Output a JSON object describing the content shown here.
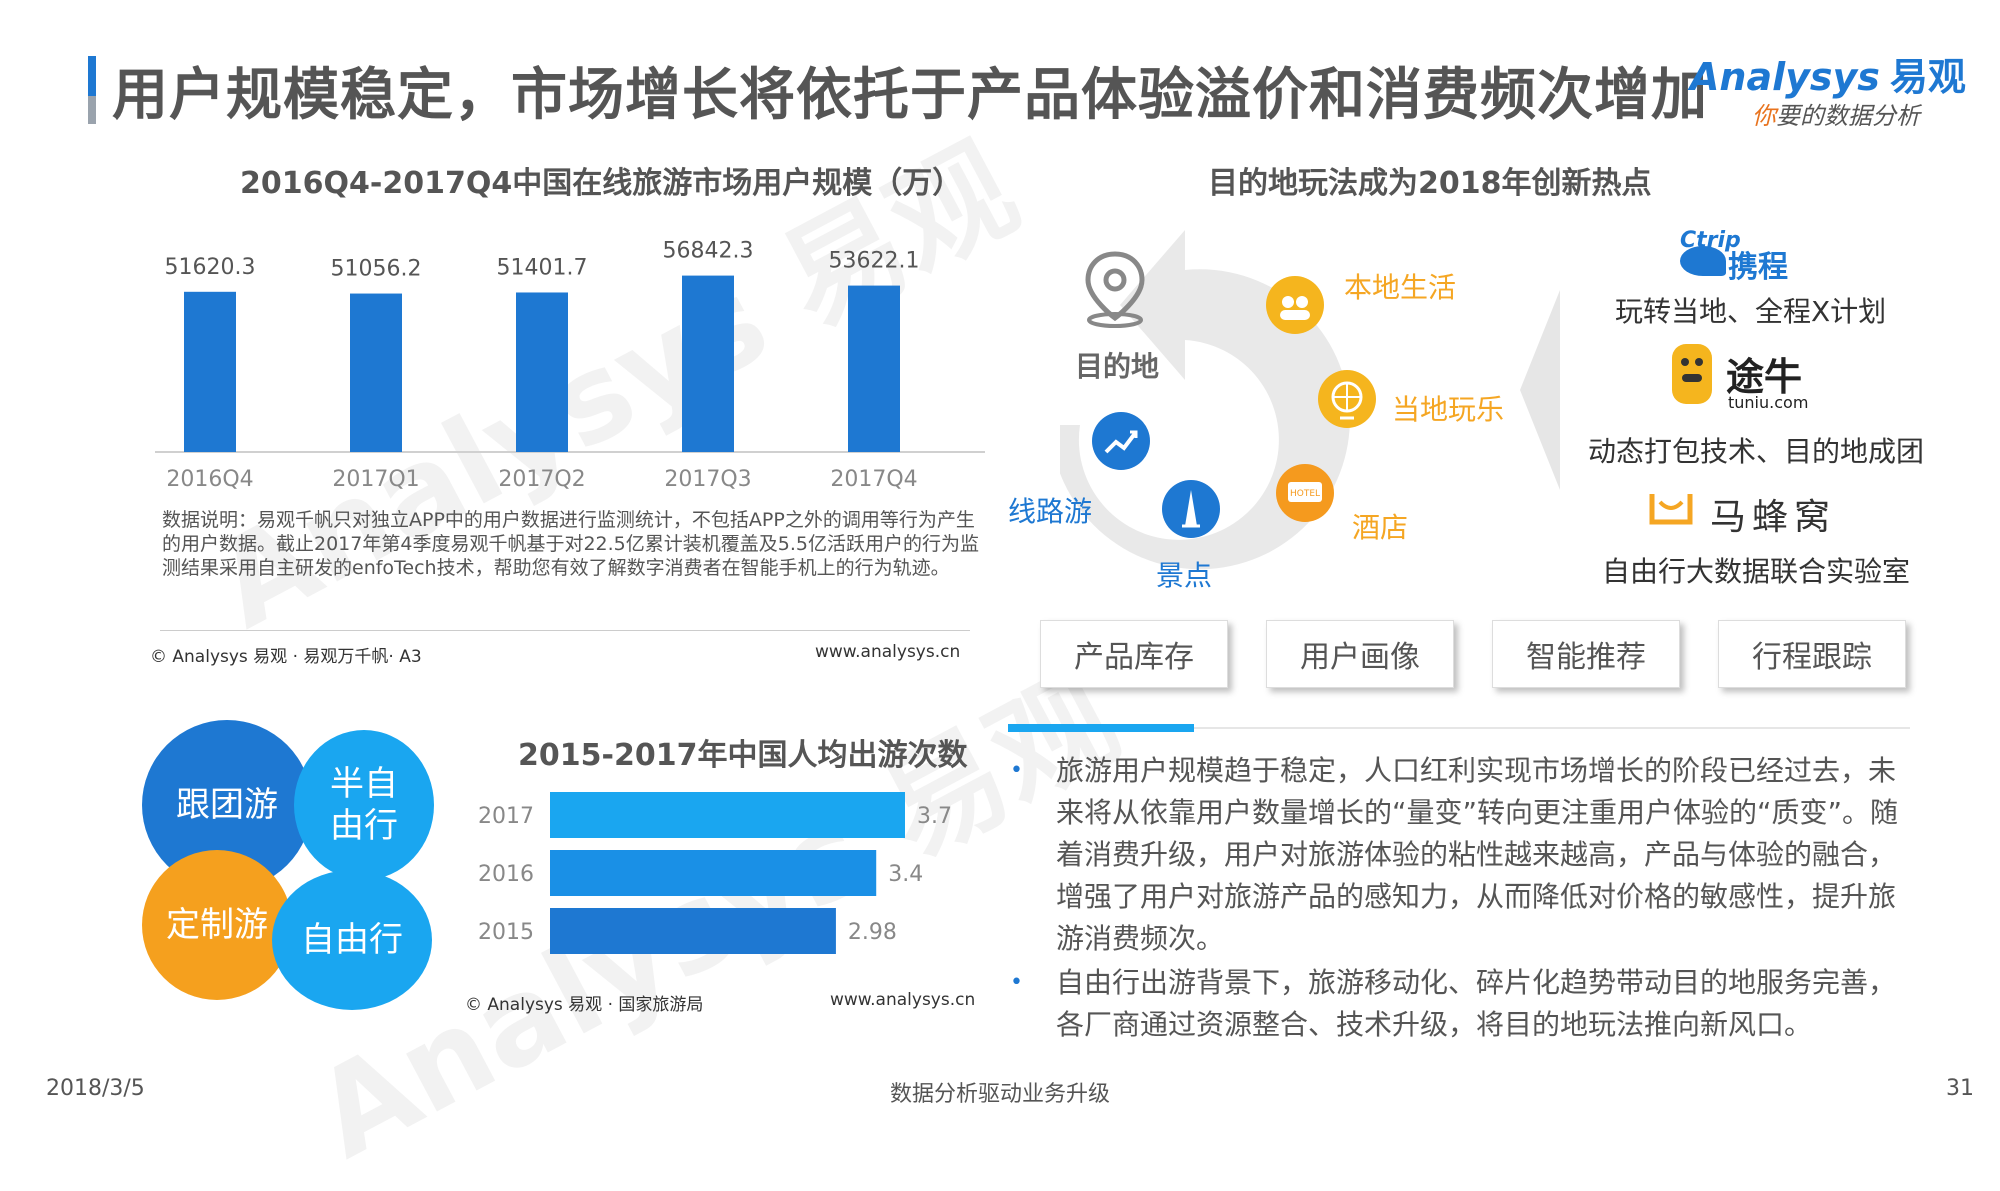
{
  "header": {
    "title": "用户规模稳定，市场增长将依托于产品体验溢价和消费频次增加",
    "logo_en": "Analysys",
    "logo_cn": "易观",
    "logo_tag_a": "你",
    "logo_tag_b": "要的数据分析"
  },
  "bar_chart": {
    "title": "2016Q4-2017Q4中国在线旅游市场用户规模（万）",
    "note": "数据说明：易观千帆只对独立APP中的用户数据进行监测统计，不包括APP之外的调用等行为产生的用户数据。截止2017年第4季度易观千帆基于对22.5亿累计装机覆盖及5.5亿活跃用户的行为监测结果采用自主研发的enfoTech技术，帮助您有效了解数字消费者在智能手机上的行为轨迹。",
    "source": "© Analysys 易观 · 易观万千帆· A3",
    "url": "www.analysys.cn"
  },
  "hbar_chart": {
    "title": "2015-2017年中国人均出游次数",
    "source": "© Analysys 易观 · 国家旅游局",
    "url": "www.analysys.cn"
  },
  "chart_data": [
    {
      "type": "bar",
      "title": "2016Q4-2017Q4中国在线旅游市场用户规模（万）",
      "categories": [
        "2016Q4",
        "2017Q1",
        "2017Q2",
        "2017Q3",
        "2017Q4"
      ],
      "values": [
        51620.3,
        51056.2,
        51401.7,
        56842.3,
        53622.1
      ],
      "value_labels": [
        "51620.3",
        "51056.2",
        "51401.7",
        "56842.3",
        "53622.1"
      ],
      "color": "#1e78d2"
    },
    {
      "type": "bar",
      "orientation": "horizontal",
      "title": "2015-2017年中国人均出游次数",
      "categories": [
        "2017",
        "2016",
        "2015"
      ],
      "values": [
        3.7,
        3.4,
        2.98
      ],
      "value_labels": [
        "3.7",
        "3.4",
        "2.98"
      ],
      "colors": [
        "#1aa6f0",
        "#1a90e6",
        "#1e78d2"
      ]
    }
  ],
  "venn": {
    "tuan": "跟团游",
    "banzizhu": "半自由行",
    "dingzhi": "定制游",
    "ziyou": "自由行",
    "colors": {
      "blue_dark": "#1e78d2",
      "blue_light": "#1aa6f0",
      "orange": "#f5a01e"
    }
  },
  "innovation": {
    "title": "目的地玩法成为2018年创新热点",
    "destination": "目的地",
    "local_life": "本地生活",
    "local_fun": "当地玩乐",
    "hotel": "酒店",
    "scenic": "景点",
    "route": "线路游",
    "hotel_sign": "HOTEL",
    "brands": {
      "ctrip_en": "Ctrip",
      "ctrip_cn": "携程",
      "ctrip_desc": "玩转当地、全程X计划",
      "tuniu_cn": "途牛",
      "tuniu_en": "tuniu.com",
      "tuniu_desc": "动态打包技术、目的地成团",
      "mafengwo_cn": "马蜂窝",
      "mafengwo_desc": "自由行大数据联合实验室"
    },
    "pills": [
      "产品库存",
      "用户画像",
      "智能推荐",
      "行程跟踪"
    ]
  },
  "bullets": [
    "旅游用户规模趋于稳定，人口红利实现市场增长的阶段已经过去，未来将从依靠用户数量增长的“量变”转向更注重用户体验的“质变”。随着消费升级，用户对旅游体验的粘性越来越高，产品与体验的融合，增强了用户对旅游产品的感知力，从而降低对价格的敏感性，提升旅游消费频次。",
    "自由行出游背景下，旅游移动化、碎片化趋势带动目的地服务完善，各厂商通过资源整合、技术升级，将目的地玩法推向新风口。"
  ],
  "bullet_mark": "•",
  "footer": {
    "date": "2018/3/5",
    "center": "数据分析驱动业务升级",
    "page": "31"
  }
}
